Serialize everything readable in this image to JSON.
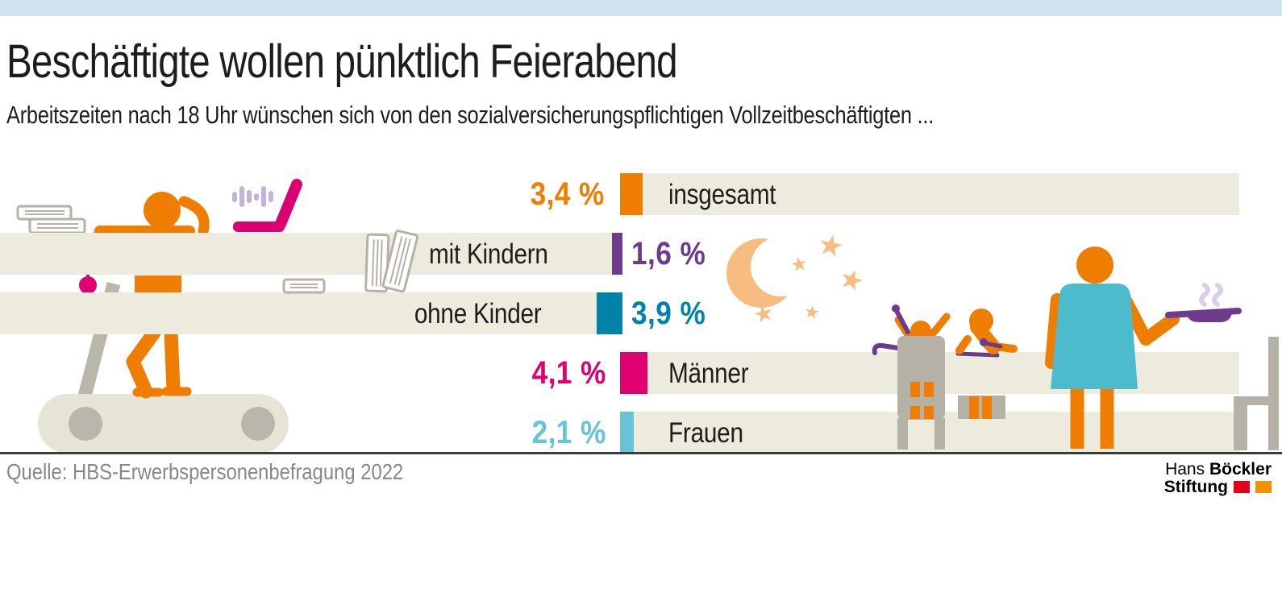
{
  "meta": {
    "top_accent_color": "#cfe4ef"
  },
  "header": {
    "title": "Beschäftigte wollen pünktlich Feierabend",
    "subtitle": "Arbeitszeiten nach 18 Uhr wünschen sich von den sozialversicherungspflichtigen Vollzeitbeschäftigten ..."
  },
  "chart_data": {
    "type": "bar",
    "orientation": "horizontal",
    "unit": "percent",
    "title": "Beschäftigte wollen pünktlich Feierabend",
    "subtitle": "Arbeitszeiten nach 18 Uhr wünschen sich von den sozialversicherungspflichtigen Vollzeitbeschäftigten ...",
    "categories": [
      "insgesamt",
      "mit Kindern",
      "ohne Kinder",
      "Männer",
      "Frauen"
    ],
    "values": [
      3.4,
      1.6,
      3.9,
      4.1,
      2.1
    ],
    "value_labels": [
      "3,4 %",
      "1,6 %",
      "3,9 %",
      "4,1 %",
      "2,1 %"
    ],
    "bar_colors": [
      "#ef7d00",
      "#6e3b8c",
      "#0082a9",
      "#e0006f",
      "#67c4d4"
    ],
    "bar_directions": [
      "right",
      "left",
      "left",
      "right",
      "right"
    ],
    "track_color": "#ecebde",
    "xlim": [
      0,
      5
    ],
    "grid": false,
    "legend": false
  },
  "footer": {
    "source": "Quelle: HBS-Erwerbspersonenbefragung 2022",
    "logo": {
      "name_regular": "Hans",
      "name_bold": "Böckler",
      "line2_bold": "Stiftung",
      "mark_colors": [
        "#e2001a",
        "#f39200"
      ]
    }
  },
  "illustrations": {
    "left_scene": "tired worker leaning on a desk bar while standing on a treadmill, with books, a pink laptop and loudspeaker sound waves",
    "right_scene": "evening at home: crescent moon with stars, two children with purple spoons at the table, adult in a teal dress holding a steaming purple pan, chairs"
  }
}
